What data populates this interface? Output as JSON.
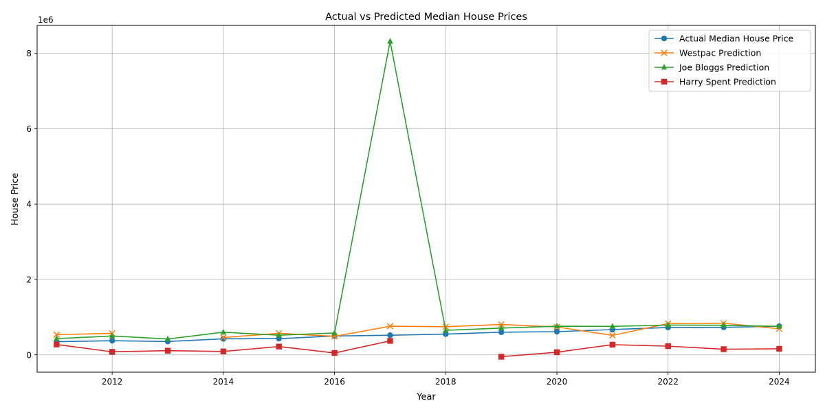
{
  "chart_data": {
    "type": "line",
    "title": "Actual vs Predicted Median House Prices",
    "xlabel": "Year",
    "ylabel": "House Price",
    "y_offset_label": "1e6",
    "xlim": [
      2010.65,
      2024.65
    ],
    "ylim": [
      -460000,
      8740000
    ],
    "x_ticks": [
      2012,
      2014,
      2016,
      2018,
      2020,
      2022,
      2024
    ],
    "x_tick_labels": [
      "2012",
      "2014",
      "2016",
      "2018",
      "2020",
      "2022",
      "2024"
    ],
    "y_ticks": [
      0,
      2000000,
      4000000,
      6000000,
      8000000
    ],
    "y_tick_labels": [
      "0",
      "2",
      "4",
      "6",
      "8"
    ],
    "grid": true,
    "legend_position": "top-right",
    "x": [
      2011,
      2012,
      2013,
      2014,
      2015,
      2016,
      2017,
      2018,
      2019,
      2020,
      2021,
      2022,
      2023,
      2024
    ],
    "series": [
      {
        "name": "Actual Median House Price",
        "color": "#1f77b4",
        "marker": "circle",
        "values": [
          350000,
          375000,
          355000,
          425000,
          430000,
          500000,
          520000,
          550000,
          600000,
          615000,
          670000,
          725000,
          730000,
          760000
        ]
      },
      {
        "name": "Westpac Prediction",
        "color": "#ff7f0e",
        "marker": "x",
        "values": [
          535000,
          570000,
          null,
          460000,
          570000,
          490000,
          760000,
          745000,
          805000,
          740000,
          515000,
          830000,
          840000,
          690000
        ]
      },
      {
        "name": "Joe Bloggs Prediction",
        "color": "#2ca02c",
        "marker": "triangle",
        "values": [
          430000,
          500000,
          420000,
          600000,
          520000,
          580000,
          8320000,
          650000,
          710000,
          760000,
          755000,
          790000,
          785000,
          755000
        ]
      },
      {
        "name": "Harry Spent Prediction",
        "color": "#d62728",
        "marker": "square",
        "values": [
          275000,
          80000,
          110000,
          90000,
          220000,
          50000,
          370000,
          null,
          -50000,
          70000,
          270000,
          230000,
          150000,
          160000
        ]
      }
    ]
  }
}
